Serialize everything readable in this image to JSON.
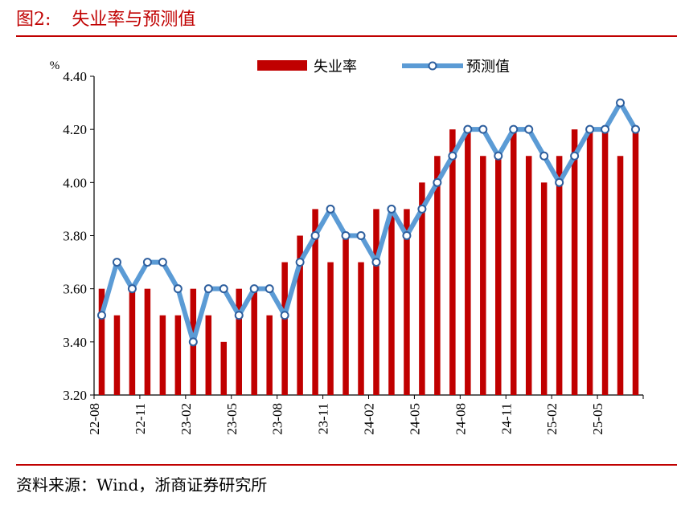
{
  "figure": {
    "number": "图2:",
    "title": "失业率与预测值",
    "source": "资料来源：Wind，浙商证券研究所"
  },
  "chart_data": {
    "type": "bar+line",
    "unit_label": "%",
    "ylim": [
      3.2,
      4.4
    ],
    "yticks": [
      "3.20",
      "3.40",
      "3.60",
      "3.80",
      "4.00",
      "4.20",
      "4.40"
    ],
    "ytick_values": [
      3.2,
      3.4,
      3.6,
      3.8,
      4.0,
      4.2,
      4.4
    ],
    "x_tick_labels": [
      {
        "index": 0,
        "label": "22-08"
      },
      {
        "index": 3,
        "label": "22-11"
      },
      {
        "index": 6,
        "label": "23-02"
      },
      {
        "index": 9,
        "label": "23-05"
      },
      {
        "index": 12,
        "label": "23-08"
      },
      {
        "index": 15,
        "label": "23-11"
      },
      {
        "index": 18,
        "label": "24-02"
      },
      {
        "index": 21,
        "label": "24-05"
      },
      {
        "index": 24,
        "label": "24-08"
      },
      {
        "index": 27,
        "label": "24-11"
      },
      {
        "index": 30,
        "label": "25-02"
      },
      {
        "index": 33,
        "label": "25-05"
      }
    ],
    "x": [
      "22-08",
      "22-09",
      "22-10",
      "22-11",
      "22-12",
      "23-01",
      "23-02",
      "23-03",
      "23-04",
      "23-05",
      "23-06",
      "23-07",
      "23-08",
      "23-09",
      "23-10",
      "23-11",
      "23-12",
      "24-01",
      "24-02",
      "24-03",
      "24-04",
      "24-05",
      "24-06",
      "24-07",
      "24-08",
      "24-09",
      "24-10",
      "24-11",
      "24-12",
      "25-01",
      "25-02",
      "25-03",
      "25-04",
      "25-05",
      "25-06",
      "25-07"
    ],
    "legend_position": "top",
    "series": [
      {
        "name": "失业率",
        "kind": "bar",
        "color": "#c00000",
        "values": [
          3.6,
          3.5,
          3.6,
          3.6,
          3.5,
          3.5,
          3.6,
          3.5,
          3.4,
          3.6,
          3.6,
          3.5,
          3.7,
          3.8,
          3.9,
          3.7,
          3.8,
          3.7,
          3.9,
          3.9,
          3.9,
          4.0,
          4.1,
          4.2,
          4.2,
          4.1,
          4.1,
          4.2,
          4.1,
          4.0,
          4.1,
          4.2,
          4.2,
          4.2,
          4.1,
          4.2
        ]
      },
      {
        "name": "预测值",
        "kind": "line",
        "color": "#5b9bd5",
        "values": [
          3.5,
          3.7,
          3.6,
          3.7,
          3.7,
          3.6,
          3.4,
          3.6,
          3.6,
          3.5,
          3.6,
          3.6,
          3.5,
          3.7,
          3.8,
          3.9,
          3.8,
          3.8,
          3.7,
          3.9,
          3.8,
          3.9,
          4.0,
          4.1,
          4.2,
          4.2,
          4.1,
          4.2,
          4.2,
          4.1,
          4.0,
          4.1,
          4.2,
          4.2,
          4.3,
          4.2
        ]
      }
    ]
  }
}
